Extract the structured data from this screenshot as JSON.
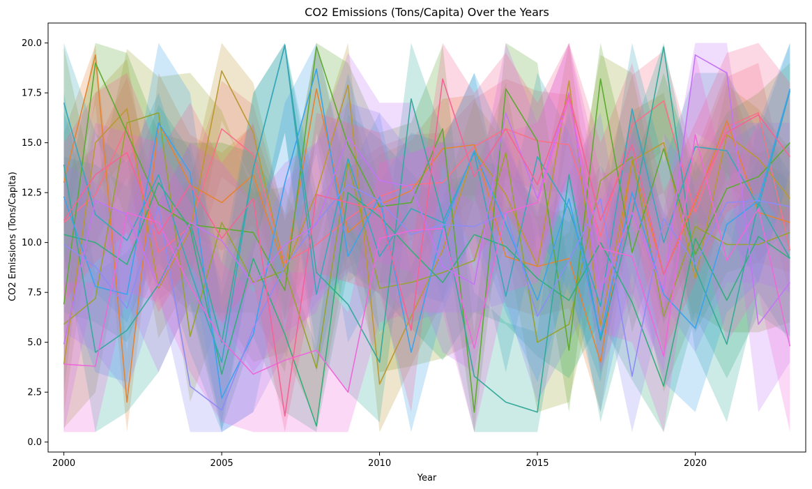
{
  "chart_data": {
    "type": "line",
    "title": "CO2 Emissions (Tons/Capita) Over the Years",
    "xlabel": "Year",
    "ylabel": "CO2 Emissions (Tons/Capita)",
    "xlim": [
      1999.5,
      2023.5
    ],
    "ylim": [
      -0.5,
      21.0
    ],
    "xticks": [
      2000,
      2005,
      2010,
      2015,
      2020
    ],
    "yticks": [
      0.0,
      2.5,
      5.0,
      7.5,
      10.0,
      12.5,
      15.0,
      17.5,
      20.0
    ],
    "ytick_labels": [
      "0.0",
      "2.5",
      "5.0",
      "7.5",
      "10.0",
      "12.5",
      "15.0",
      "17.5",
      "20.0"
    ],
    "grid": false,
    "legend": "none",
    "x": [
      2000,
      2001,
      2002,
      2003,
      2004,
      2005,
      2006,
      2007,
      2008,
      2009,
      2010,
      2011,
      2012,
      2013,
      2014,
      2015,
      2016,
      2017,
      2018,
      2019,
      2020,
      2021,
      2022,
      2023
    ],
    "band_alpha": 0.25,
    "series": [
      {
        "color": "#f77189",
        "values": [
          11.0,
          12.4,
          15.8,
          9.5,
          10.8,
          15.7,
          14.4,
          9.0,
          9.9,
          11.2,
          12.3,
          12.9,
          13.0,
          14.8,
          15.7,
          15.1,
          14.9,
          10.3,
          15.9,
          17.1,
          11.5,
          15.8,
          16.5,
          9.6
        ],
        "lower": [
          8.6,
          9.9,
          13.3,
          7.1,
          8.4,
          13.3,
          12.0,
          6.6,
          7.4,
          8.7,
          9.8,
          10.5,
          10.6,
          12.3,
          13.2,
          12.6,
          12.5,
          7.8,
          13.4,
          14.6,
          9.1,
          13.3,
          14.0,
          7.2
        ],
        "upper": [
          13.4,
          14.8,
          18.3,
          11.9,
          13.2,
          18.1,
          16.9,
          11.4,
          12.3,
          13.7,
          14.8,
          15.4,
          15.5,
          17.2,
          18.2,
          17.6,
          17.4,
          12.7,
          18.4,
          19.6,
          14.0,
          18.3,
          19.0,
          12.1
        ]
      },
      {
        "color": "#e68332",
        "values": [
          13.0,
          19.4,
          2.0,
          16.0,
          12.9,
          12.0,
          13.4,
          8.6,
          17.7,
          10.5,
          11.9,
          12.6,
          14.7,
          14.9,
          9.3,
          8.8,
          9.2,
          4.0,
          14.1,
          8.4,
          12.0,
          16.1,
          11.5,
          11.0
        ],
        "lower": [
          10.5,
          16.9,
          0.5,
          13.5,
          10.4,
          9.6,
          10.9,
          6.1,
          15.2,
          8.0,
          9.4,
          10.1,
          12.2,
          12.4,
          6.8,
          6.3,
          6.7,
          1.5,
          11.6,
          5.9,
          9.5,
          13.6,
          9.0,
          8.5
        ],
        "upper": [
          15.5,
          19.9,
          4.5,
          18.5,
          15.4,
          14.5,
          15.9,
          11.1,
          20.0,
          13.0,
          14.4,
          15.1,
          17.2,
          17.4,
          11.8,
          11.3,
          11.7,
          6.5,
          16.6,
          10.9,
          14.5,
          18.6,
          14.0,
          13.5
        ]
      },
      {
        "color": "#bb9832",
        "values": [
          3.9,
          15.0,
          16.7,
          7.7,
          10.6,
          18.6,
          15.5,
          8.6,
          12.5,
          17.9,
          2.9,
          6.3,
          9.6,
          14.6,
          12.4,
          8.8,
          18.1,
          5.8,
          14.1,
          15.0,
          8.2,
          15.4,
          14.2,
          12.2
        ],
        "lower": [
          1.4,
          12.5,
          14.2,
          5.2,
          8.1,
          16.1,
          13.0,
          6.1,
          10.0,
          15.4,
          0.5,
          3.8,
          7.1,
          12.1,
          9.9,
          6.3,
          15.6,
          3.3,
          11.6,
          12.5,
          5.7,
          12.9,
          11.7,
          9.7
        ],
        "upper": [
          6.4,
          17.5,
          19.2,
          10.2,
          13.1,
          20.0,
          18.0,
          11.1,
          15.0,
          20.0,
          5.4,
          8.8,
          12.1,
          17.1,
          14.9,
          11.3,
          20.0,
          8.3,
          16.6,
          17.5,
          10.7,
          17.9,
          16.7,
          14.7
        ]
      },
      {
        "color": "#96a331",
        "values": [
          5.9,
          7.2,
          16.0,
          16.5,
          5.3,
          11.0,
          8.0,
          8.6,
          3.7,
          14.0,
          7.7,
          8.0,
          8.5,
          9.1,
          14.5,
          5.0,
          5.9,
          13.1,
          14.3,
          6.3,
          10.8,
          9.9,
          9.9,
          10.5
        ],
        "lower": [
          0.7,
          2.5,
          11.0,
          12.0,
          2.0,
          6.5,
          4.0,
          4.5,
          1.0,
          9.5,
          3.5,
          3.8,
          4.2,
          5.0,
          10.0,
          1.5,
          2.0,
          9.0,
          10.0,
          2.5,
          6.5,
          5.5,
          5.5,
          6.0
        ],
        "upper": [
          19.8,
          12.5,
          19.7,
          18.3,
          18.5,
          16.6,
          12.5,
          12.8,
          8.5,
          17.5,
          12.0,
          12.5,
          13.0,
          13.5,
          18.0,
          9.5,
          10.5,
          19.4,
          18.5,
          11.0,
          15.0,
          14.5,
          14.5,
          15.0
        ]
      },
      {
        "color": "#5ea932",
        "values": [
          6.9,
          19.0,
          15.5,
          11.9,
          10.9,
          10.7,
          10.5,
          7.6,
          19.8,
          14.9,
          11.8,
          12.0,
          15.7,
          1.5,
          17.7,
          15.1,
          4.6,
          18.2,
          9.5,
          14.7,
          9.4,
          12.7,
          13.3,
          15.0
        ],
        "lower": [
          2.5,
          15.5,
          11.0,
          8.0,
          6.5,
          6.5,
          6.5,
          3.5,
          15.5,
          10.5,
          8.0,
          8.0,
          11.5,
          0.5,
          13.5,
          11.0,
          1.5,
          14.0,
          5.5,
          10.5,
          5.5,
          8.5,
          9.0,
          11.0
        ],
        "upper": [
          11.5,
          20.0,
          19.5,
          15.5,
          15.0,
          15.0,
          14.5,
          11.5,
          20.0,
          19.0,
          15.5,
          16.0,
          19.9,
          5.5,
          20.0,
          19.0,
          8.5,
          20.0,
          13.5,
          18.5,
          13.5,
          16.5,
          17.5,
          19.0
        ]
      },
      {
        "color": "#33ae7a",
        "values": [
          10.4,
          10.0,
          8.9,
          13.0,
          10.7,
          3.4,
          9.2,
          5.4,
          0.8,
          12.5,
          11.3,
          9.6,
          8.0,
          10.4,
          9.8,
          8.2,
          7.1,
          10.0,
          7.0,
          2.8,
          10.2,
          7.1,
          10.3,
          9.2
        ],
        "lower": [
          6.5,
          6.0,
          5.0,
          9.0,
          6.8,
          0.6,
          5.3,
          1.5,
          0.5,
          8.6,
          7.4,
          5.7,
          4.1,
          6.5,
          5.9,
          4.3,
          3.2,
          6.1,
          3.1,
          0.5,
          6.3,
          3.2,
          6.4,
          5.3
        ],
        "upper": [
          14.3,
          13.9,
          12.8,
          16.9,
          14.6,
          7.3,
          13.1,
          9.3,
          4.7,
          16.4,
          15.2,
          13.5,
          11.9,
          14.3,
          13.7,
          12.1,
          11.0,
          13.9,
          10.9,
          6.7,
          14.1,
          11.0,
          14.2,
          13.1
        ]
      },
      {
        "color": "#35aa9a",
        "values": [
          13.9,
          4.5,
          5.6,
          7.9,
          11.0,
          5.0,
          13.7,
          19.9,
          8.5,
          6.9,
          4.0,
          17.2,
          11.3,
          3.3,
          2.0,
          1.5,
          13.4,
          5.1,
          11.4,
          19.8,
          8.7,
          4.9,
          12.0,
          9.2
        ],
        "lower": [
          9.5,
          0.5,
          1.5,
          3.5,
          7.0,
          1.0,
          9.5,
          15.5,
          4.5,
          2.5,
          1.0,
          13.0,
          7.0,
          0.5,
          0.5,
          0.5,
          9.5,
          1.0,
          7.0,
          15.5,
          4.5,
          1.0,
          7.5,
          5.0
        ],
        "upper": [
          17.5,
          8.5,
          9.5,
          12.0,
          15.0,
          9.0,
          17.5,
          20.0,
          12.5,
          11.0,
          8.0,
          20.0,
          15.5,
          7.5,
          6.0,
          5.5,
          17.5,
          9.0,
          15.5,
          20.0,
          12.5,
          9.0,
          16.0,
          13.5
        ]
      },
      {
        "color": "#38a7bb",
        "values": [
          17.0,
          11.4,
          10.1,
          13.4,
          8.6,
          4.0,
          13.7,
          19.9,
          7.4,
          14.2,
          9.3,
          11.7,
          11.0,
          14.5,
          7.3,
          14.3,
          11.7,
          6.8,
          16.7,
          10.0,
          14.8,
          14.6,
          11.8,
          17.6
        ],
        "lower": [
          13.0,
          7.5,
          6.0,
          9.5,
          4.5,
          0.5,
          9.5,
          15.5,
          3.5,
          10.0,
          5.5,
          7.5,
          7.0,
          10.5,
          3.5,
          10.5,
          7.5,
          3.0,
          12.5,
          6.0,
          11.0,
          10.5,
          8.0,
          13.5
        ],
        "upper": [
          20.0,
          15.5,
          14.0,
          17.5,
          12.5,
          8.0,
          17.5,
          20.0,
          11.5,
          18.5,
          13.0,
          15.5,
          15.0,
          18.5,
          11.0,
          18.5,
          15.5,
          10.5,
          20.0,
          14.0,
          18.5,
          18.5,
          15.5,
          20.0
        ]
      },
      {
        "color": "#3ba3ec",
        "values": [
          12.3,
          7.8,
          7.4,
          16.0,
          13.5,
          2.2,
          5.4,
          13.0,
          18.7,
          9.3,
          12.3,
          4.5,
          10.7,
          14.6,
          10.9,
          7.1,
          12.2,
          5.3,
          12.5,
          7.4,
          5.7,
          10.9,
          12.1,
          17.7
        ],
        "lower": [
          8.0,
          3.5,
          3.0,
          12.0,
          9.0,
          0.5,
          1.5,
          9.0,
          14.5,
          5.0,
          8.0,
          0.5,
          6.5,
          10.5,
          6.5,
          3.0,
          8.0,
          1.5,
          8.5,
          3.0,
          1.5,
          6.5,
          8.0,
          13.5
        ],
        "upper": [
          16.5,
          12.0,
          11.5,
          20.0,
          17.5,
          6.5,
          9.5,
          17.0,
          20.0,
          13.5,
          16.5,
          8.5,
          15.0,
          18.5,
          15.0,
          11.5,
          16.5,
          9.5,
          16.5,
          11.5,
          9.5,
          15.0,
          16.0,
          20.0
        ]
      },
      {
        "color": "#8e8cf4",
        "values": [
          9.9,
          8.8,
          6.7,
          11.8,
          2.8,
          1.6,
          5.7,
          8.8,
          11.0,
          12.9,
          12.1,
          10.4,
          10.9,
          10.8,
          11.5,
          6.3,
          9.1,
          12.2,
          3.3,
          11.2,
          8.9,
          12.0,
          12.1,
          11.8
        ],
        "lower": [
          5.5,
          4.5,
          2.5,
          7.5,
          0.5,
          0.5,
          1.5,
          4.5,
          7.0,
          8.5,
          8.0,
          6.0,
          6.5,
          6.5,
          7.0,
          2.0,
          5.0,
          8.0,
          0.5,
          7.0,
          4.5,
          8.0,
          8.0,
          7.5
        ],
        "upper": [
          14.0,
          13.0,
          11.0,
          16.0,
          7.0,
          6.0,
          10.0,
          13.0,
          15.0,
          17.0,
          16.5,
          14.5,
          15.0,
          15.0,
          15.5,
          10.5,
          13.5,
          16.5,
          7.5,
          15.5,
          13.0,
          16.0,
          16.0,
          16.0
        ]
      },
      {
        "color": "#c375f4",
        "values": [
          4.9,
          12.1,
          11.4,
          7.8,
          11.0,
          10.1,
          7.9,
          9.9,
          10.9,
          15.3,
          13.1,
          12.8,
          8.8,
          7.9,
          16.5,
          12.2,
          17.5,
          7.6,
          11.5,
          7.6,
          19.4,
          18.5,
          5.9,
          8.0
        ],
        "lower": [
          0.5,
          8.0,
          7.0,
          3.5,
          7.0,
          6.0,
          3.5,
          5.5,
          6.5,
          11.0,
          9.0,
          8.5,
          4.5,
          3.5,
          12.5,
          8.0,
          13.5,
          3.5,
          7.5,
          3.5,
          15.5,
          14.5,
          1.5,
          4.0
        ],
        "upper": [
          9.0,
          16.0,
          15.5,
          12.0,
          15.0,
          14.0,
          12.0,
          14.0,
          15.0,
          19.5,
          17.0,
          17.0,
          13.0,
          12.0,
          20.0,
          16.0,
          20.0,
          12.0,
          15.5,
          11.5,
          20.0,
          20.0,
          10.0,
          12.0
        ]
      },
      {
        "color": "#ef68da",
        "values": [
          3.9,
          3.8,
          11.5,
          11.0,
          7.8,
          5.1,
          3.4,
          4.1,
          4.6,
          2.5,
          10.2,
          10.6,
          10.7,
          4.7,
          11.5,
          12.0,
          17.2,
          9.7,
          9.3,
          4.3,
          15.4,
          9.1,
          11.7,
          4.8
        ],
        "lower": [
          0.5,
          0.5,
          7.5,
          7.0,
          3.5,
          1.0,
          0.5,
          0.5,
          0.5,
          0.5,
          6.0,
          6.5,
          6.5,
          0.5,
          7.5,
          8.0,
          13.0,
          5.5,
          5.0,
          0.5,
          11.5,
          5.0,
          7.5,
          0.5
        ],
        "upper": [
          8.0,
          8.0,
          15.5,
          15.0,
          12.0,
          9.0,
          7.5,
          8.5,
          8.5,
          6.5,
          14.0,
          14.5,
          15.0,
          8.5,
          15.5,
          16.0,
          20.0,
          13.5,
          13.5,
          8.5,
          19.5,
          13.0,
          16.0,
          9.0
        ]
      },
      {
        "color": "#f56395",
        "values": [
          11.1,
          13.4,
          14.5,
          10.4,
          12.9,
          10.2,
          12.2,
          1.3,
          12.4,
          12.0,
          11.6,
          5.6,
          18.2,
          13.3,
          15.7,
          12.9,
          17.4,
          11.1,
          14.9,
          8.4,
          12.2,
          15.5,
          16.4,
          14.3
        ],
        "lower": [
          7.0,
          9.0,
          10.5,
          6.5,
          9.0,
          6.0,
          8.0,
          0.5,
          8.5,
          8.0,
          7.5,
          1.5,
          14.0,
          9.0,
          11.5,
          9.0,
          13.5,
          7.0,
          11.0,
          4.5,
          8.0,
          11.5,
          12.5,
          10.5
        ],
        "upper": [
          15.0,
          17.5,
          18.5,
          14.5,
          17.0,
          14.0,
          16.0,
          5.5,
          16.5,
          16.0,
          15.5,
          9.5,
          20.0,
          17.5,
          19.5,
          17.0,
          20.0,
          15.0,
          19.0,
          12.5,
          16.0,
          19.5,
          20.0,
          18.0
        ]
      }
    ]
  }
}
